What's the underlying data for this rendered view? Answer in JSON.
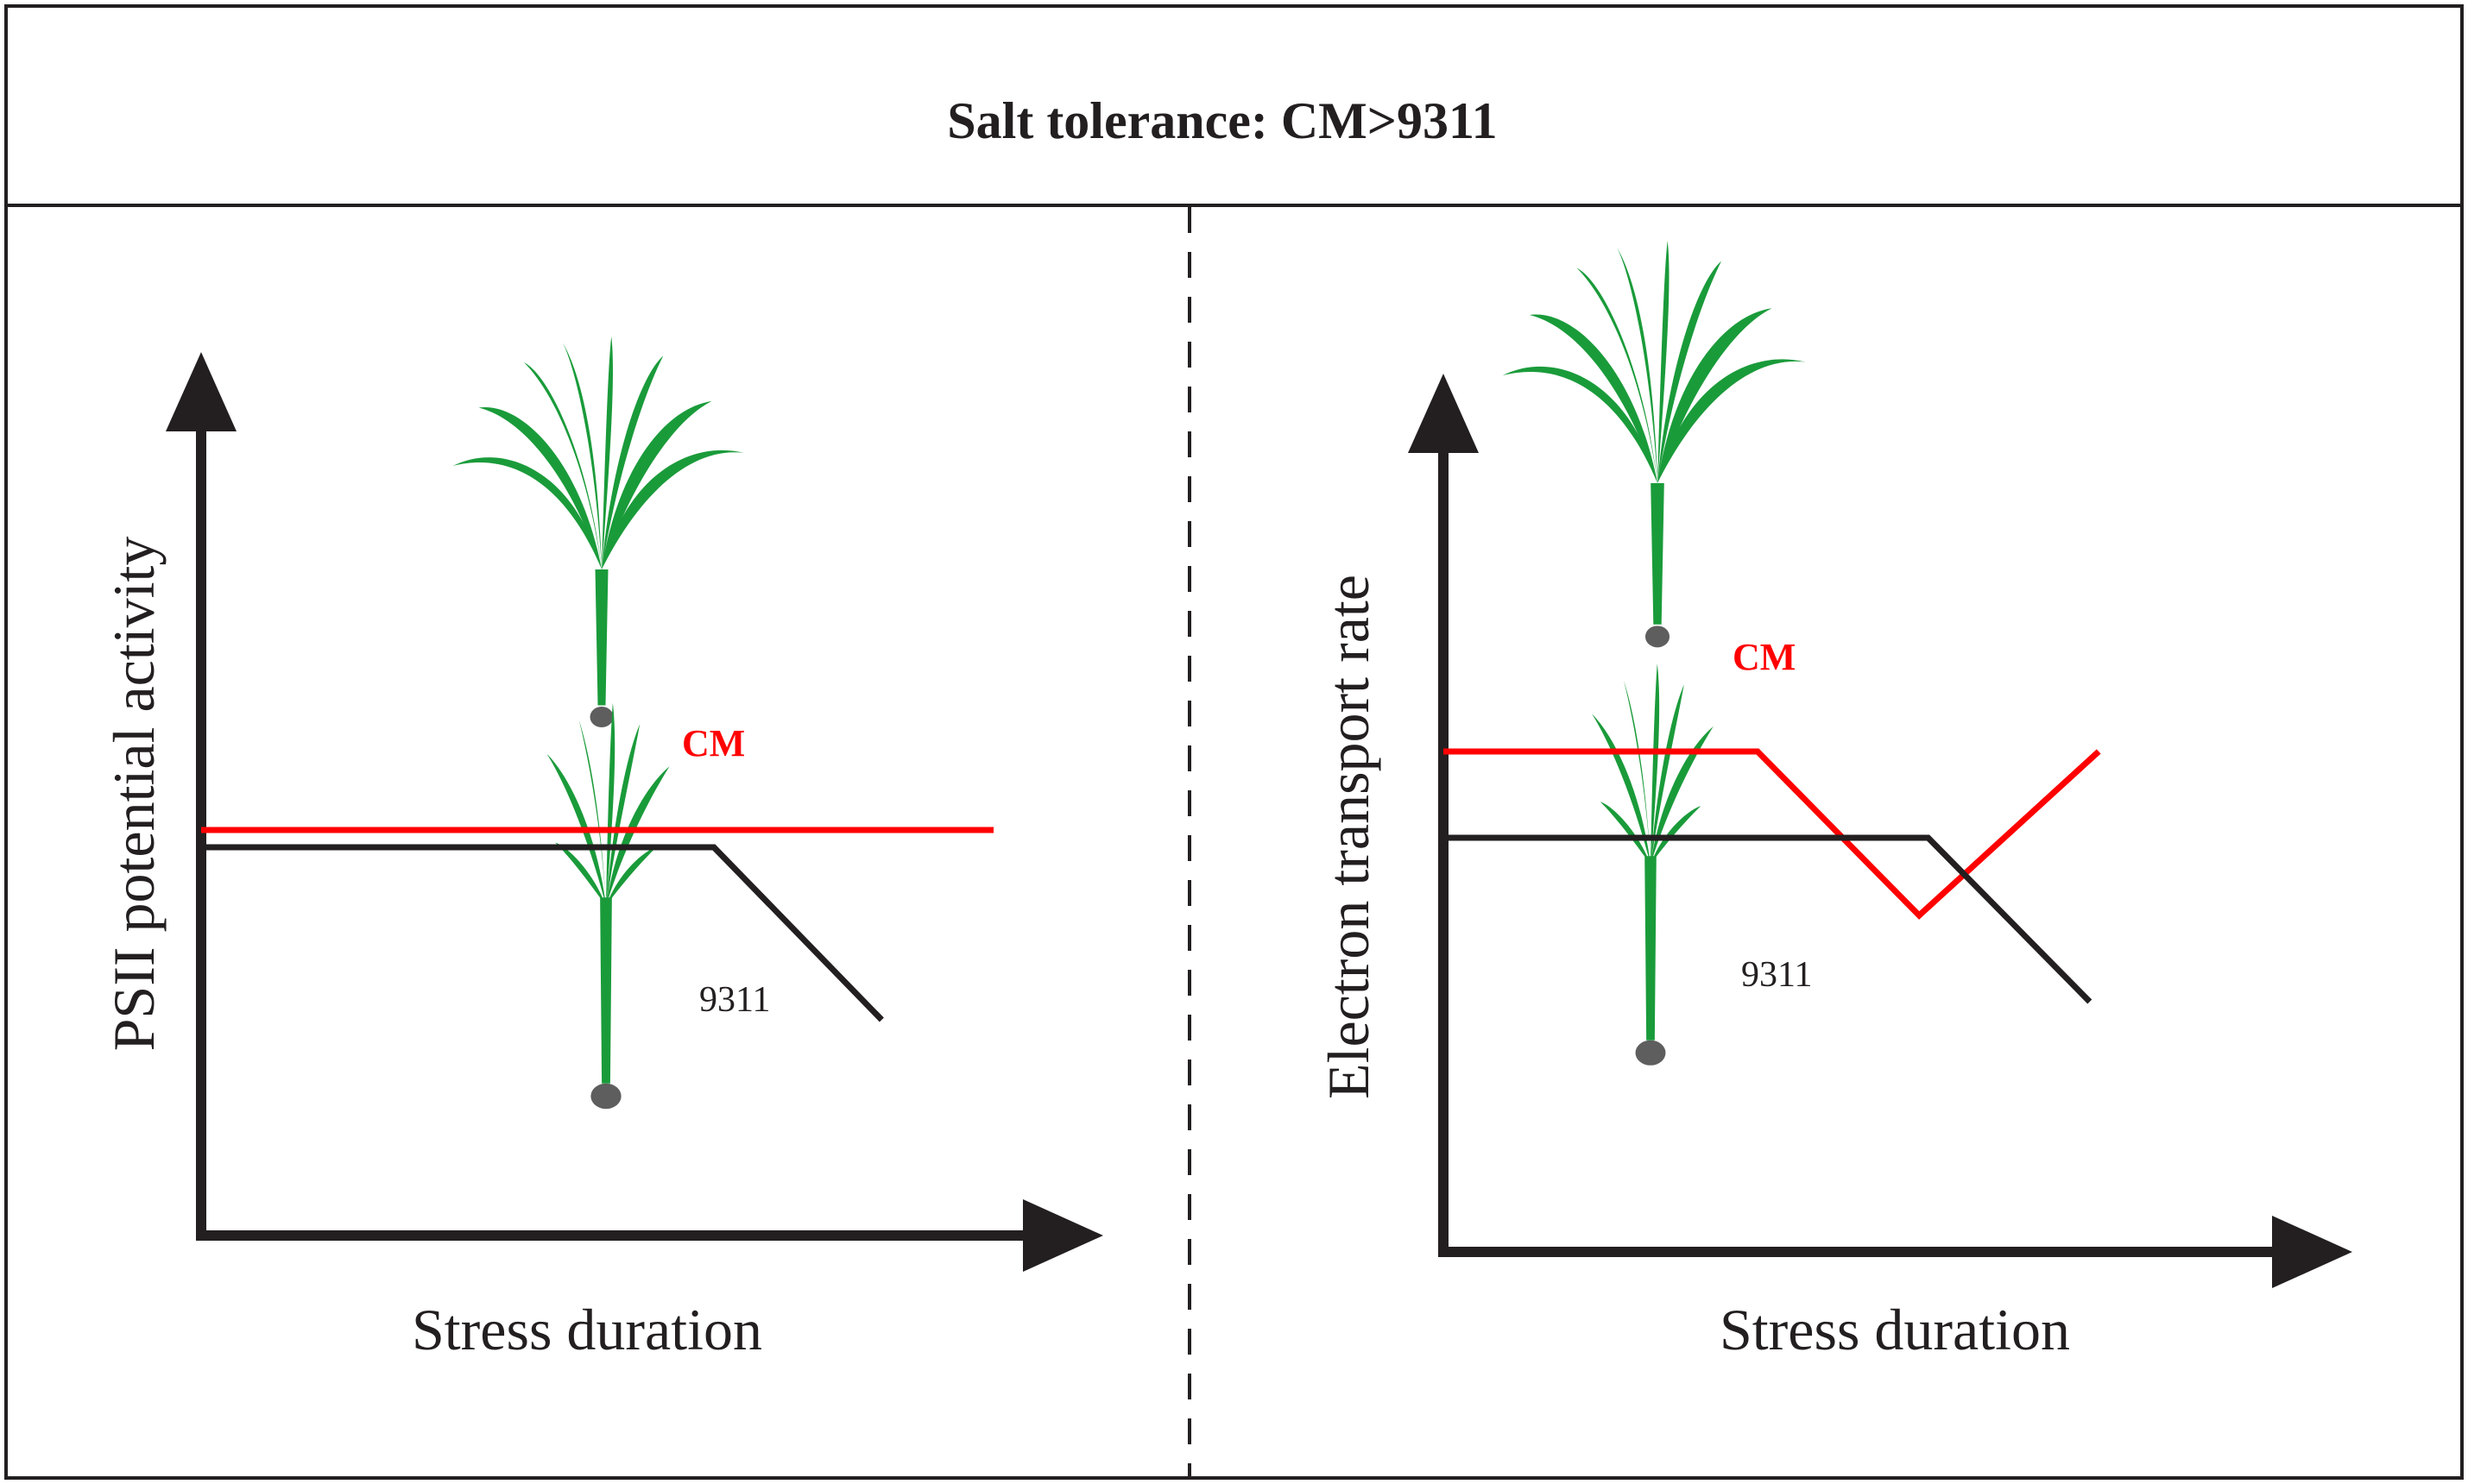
{
  "title": "Salt tolerance: CM>9311",
  "colors": {
    "frame": "#231f20",
    "cm_line": "#ff0000",
    "line_9311": "#231f20",
    "axis": "#231f20",
    "plant_leaf": "#1a9b3a",
    "plant_root": "#5e5e5e"
  },
  "chart_data": [
    {
      "type": "line",
      "panel": "left",
      "ylabel": "PSII potential activity",
      "xlabel": "Stress duration",
      "xlim": [
        0,
        10
      ],
      "ylim": [
        0,
        10
      ],
      "series": [
        {
          "name": "CM",
          "label": "CM",
          "color": "#ff0000",
          "x": [
            0,
            8.5
          ],
          "y": [
            4.7,
            4.7
          ]
        },
        {
          "name": "9311",
          "label": "9311",
          "color": "#231f20",
          "x": [
            0,
            5.5,
            7.3
          ],
          "y": [
            4.5,
            4.5,
            2.5
          ]
        }
      ]
    },
    {
      "type": "line",
      "panel": "right",
      "ylabel": "Electron transport rate",
      "xlabel": "Stress duration",
      "xlim": [
        0,
        10
      ],
      "ylim": [
        0,
        10
      ],
      "series": [
        {
          "name": "CM",
          "label": "CM",
          "color": "#ff0000",
          "x": [
            0,
            3.5,
            5.3,
            7.3
          ],
          "y": [
            5.8,
            5.8,
            3.9,
            5.8
          ]
        },
        {
          "name": "9311",
          "label": "9311",
          "color": "#231f20",
          "x": [
            0,
            5.4,
            7.2
          ],
          "y": [
            4.8,
            4.8,
            2.9
          ]
        }
      ]
    }
  ]
}
